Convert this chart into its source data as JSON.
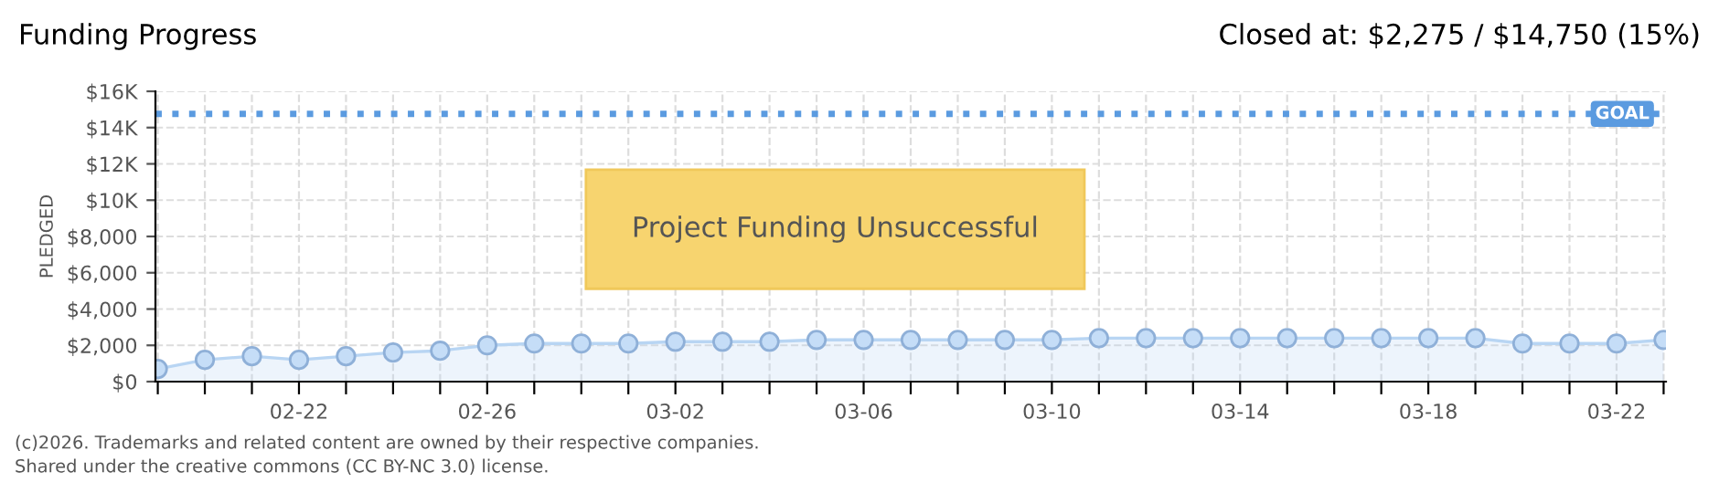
{
  "chart_data": {
    "type": "area",
    "title": "Funding Progress",
    "subtitle": "Closed at: $2,275 / $14,750 (15%)",
    "ylabel": "PLEDGED",
    "categories": [
      null,
      null,
      null,
      "02-22",
      null,
      null,
      null,
      "02-26",
      null,
      null,
      null,
      "03-02",
      null,
      null,
      null,
      "03-06",
      null,
      null,
      null,
      "03-10",
      null,
      null,
      null,
      "03-14",
      null,
      null,
      null,
      "03-18",
      null,
      null,
      null,
      "03-22",
      null
    ],
    "series": [
      {
        "color": "#b8d5f3",
        "values": [
          700,
          1200,
          1400,
          1200,
          1400,
          1600,
          1700,
          2000,
          2100,
          2100,
          2100,
          2200,
          2200,
          2200,
          2300,
          2300,
          2300,
          2300,
          2300,
          2300,
          2400,
          2400,
          2400,
          2400,
          2400,
          2400,
          2400,
          2400,
          2400,
          2100,
          2100,
          2100,
          2300
        ]
      }
    ],
    "ylim": [
      0,
      16000
    ],
    "yticks": [
      {
        "value": 0,
        "label": "$0"
      },
      {
        "value": 2000,
        "label": "$2,000"
      },
      {
        "value": 4000,
        "label": "$4,000"
      },
      {
        "value": 6000,
        "label": "$6,000"
      },
      {
        "value": 8000,
        "label": "$8,000"
      },
      {
        "value": 10000,
        "label": "$10K"
      },
      {
        "value": 12000,
        "label": "$12K"
      },
      {
        "value": 14000,
        "label": "$14K"
      },
      {
        "value": 16000,
        "label": "$16K"
      }
    ],
    "ref_lines": [
      {
        "axis": "y",
        "value": 14750,
        "label": "GOAL",
        "color": "#5b9be0",
        "line_style": "dotted"
      }
    ],
    "annotations": [
      "Project Funding Unsuccessful",
      "(c)2026. Trademarks and related content are owned by their respective companies.",
      "Shared under the creative commons (CC BY-NC 3.0) license."
    ],
    "grid": true,
    "marker": "circle",
    "legend": false
  }
}
